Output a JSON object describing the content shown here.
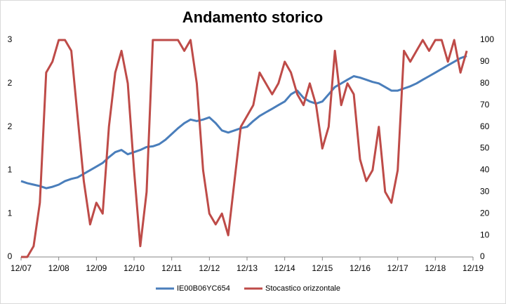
{
  "chart_data": {
    "type": "line",
    "title": "Andamento storico",
    "x": [
      "2007-12",
      "2008-02",
      "2008-04",
      "2008-06",
      "2008-08",
      "2008-10",
      "2008-12",
      "2009-02",
      "2009-04",
      "2009-06",
      "2009-08",
      "2009-10",
      "2009-12",
      "2010-02",
      "2010-04",
      "2010-06",
      "2010-08",
      "2010-10",
      "2010-12",
      "2011-02",
      "2011-04",
      "2011-06",
      "2011-08",
      "2011-10",
      "2011-12",
      "2012-02",
      "2012-04",
      "2012-06",
      "2012-08",
      "2012-10",
      "2012-12",
      "2013-02",
      "2013-04",
      "2013-06",
      "2013-08",
      "2013-10",
      "2013-12",
      "2014-02",
      "2014-04",
      "2014-06",
      "2014-08",
      "2014-10",
      "2014-12",
      "2015-02",
      "2015-04",
      "2015-06",
      "2015-08",
      "2015-10",
      "2015-12",
      "2016-02",
      "2016-04",
      "2016-06",
      "2016-08",
      "2016-10",
      "2016-12",
      "2017-02",
      "2017-04",
      "2017-06",
      "2017-08",
      "2017-10",
      "2017-12",
      "2018-02",
      "2018-04",
      "2018-06",
      "2018-08",
      "2018-10",
      "2018-12",
      "2019-02",
      "2019-04",
      "2019-06",
      "2019-08",
      "2019-10"
    ],
    "series": [
      {
        "name": "IE00B06YC654",
        "color": "#4a7ebb",
        "values": [
          1.05,
          1.02,
          1.0,
          0.98,
          0.95,
          0.97,
          1.0,
          1.05,
          1.08,
          1.1,
          1.15,
          1.2,
          1.25,
          1.3,
          1.38,
          1.45,
          1.48,
          1.42,
          1.45,
          1.48,
          1.52,
          1.53,
          1.56,
          1.62,
          1.7,
          1.78,
          1.85,
          1.9,
          1.88,
          1.9,
          1.93,
          1.85,
          1.75,
          1.72,
          1.75,
          1.78,
          1.8,
          1.88,
          1.95,
          2.0,
          2.05,
          2.1,
          2.15,
          2.25,
          2.3,
          2.2,
          2.15,
          2.12,
          2.15,
          2.25,
          2.35,
          2.4,
          2.45,
          2.5,
          2.48,
          2.45,
          2.42,
          2.4,
          2.35,
          2.3,
          2.3,
          2.33,
          2.36,
          2.4,
          2.45,
          2.5,
          2.55,
          2.6,
          2.65,
          2.7,
          2.75,
          2.78
        ]
      },
      {
        "name": "Stocastico orizzontale",
        "color": "#be4b48",
        "axis": "y2",
        "values": [
          0,
          0,
          5,
          25,
          85,
          90,
          100,
          100,
          95,
          65,
          35,
          15,
          25,
          20,
          60,
          85,
          95,
          80,
          40,
          5,
          30,
          100,
          100,
          100,
          100,
          100,
          95,
          100,
          80,
          40,
          20,
          15,
          20,
          10,
          35,
          60,
          65,
          70,
          85,
          80,
          75,
          80,
          90,
          85,
          75,
          70,
          80,
          70,
          50,
          60,
          95,
          70,
          80,
          75,
          45,
          35,
          40,
          60,
          30,
          25,
          40,
          95,
          90,
          95,
          100,
          95,
          100,
          100,
          90,
          100,
          85,
          95
        ]
      }
    ],
    "xlim": [
      "2007-12",
      "2019-12"
    ],
    "xticks": [
      {
        "value": "2007-12",
        "label": "12/07"
      },
      {
        "value": "2008-12",
        "label": "12/08"
      },
      {
        "value": "2009-12",
        "label": "12/09"
      },
      {
        "value": "2010-12",
        "label": "12/10"
      },
      {
        "value": "2011-12",
        "label": "12/11"
      },
      {
        "value": "2012-12",
        "label": "12/12"
      },
      {
        "value": "2013-12",
        "label": "12/13"
      },
      {
        "value": "2014-12",
        "label": "12/14"
      },
      {
        "value": "2015-12",
        "label": "12/15"
      },
      {
        "value": "2016-12",
        "label": "12/16"
      },
      {
        "value": "2017-12",
        "label": "12/17"
      },
      {
        "value": "2018-12",
        "label": "12/18"
      },
      {
        "value": "2019-12",
        "label": "12/19"
      }
    ],
    "ylim": [
      0,
      3
    ],
    "yticks": [
      0,
      {
        "value": 0.6,
        "label": "1"
      },
      {
        "value": 1.2,
        "label": "1"
      },
      {
        "value": 1.8,
        "label": "2"
      },
      {
        "value": 2.4,
        "label": "2"
      },
      3
    ],
    "y2lim": [
      0,
      100
    ],
    "y2ticks": [
      0,
      10,
      20,
      30,
      40,
      50,
      60,
      70,
      80,
      90,
      100
    ],
    "legend": "bottom"
  }
}
